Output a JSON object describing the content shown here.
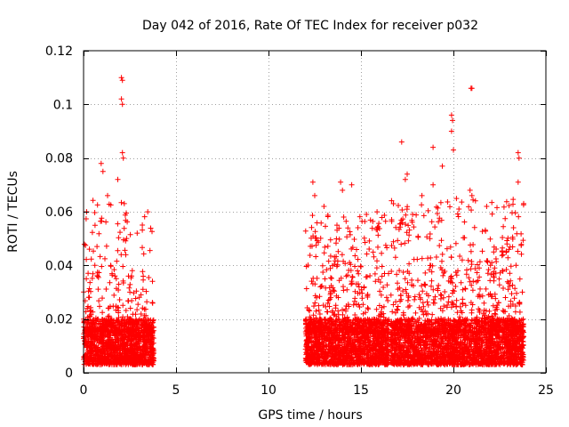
{
  "chart_data": {
    "type": "scatter",
    "title": "Day 042 of 2016, Rate Of TEC Index for receiver p032",
    "xlabel": "GPS time / hours",
    "ylabel": "ROTI / TECUs",
    "xlim": [
      0,
      25
    ],
    "ylim": [
      0,
      0.12
    ],
    "xticks": [
      0,
      5,
      10,
      15,
      20,
      25
    ],
    "yticks": [
      0,
      0.02,
      0.04,
      0.06,
      0.08,
      0.1,
      0.12
    ],
    "xtick_labels": [
      "0",
      "5",
      "10",
      "15",
      "20",
      "25"
    ],
    "ytick_labels": [
      "0",
      "0.02",
      "0.04",
      "0.06",
      "0.08",
      "0.1",
      "0.12"
    ],
    "grid": true,
    "marker": "+",
    "color": "#ff0000",
    "series": [
      {
        "name": "ROTI",
        "density_segments": [
          {
            "x_range": [
              0.0,
              3.8
            ],
            "y_base": [
              0.003,
              0.02
            ],
            "n_base": 1300,
            "n_spread": 260,
            "y_spread_max": 0.065
          },
          {
            "x_range": [
              12.0,
              16.5
            ],
            "y_base": [
              0.003,
              0.02
            ],
            "n_base": 1500,
            "n_spread": 380,
            "y_spread_max": 0.06
          },
          {
            "x_range": [
              16.6,
              23.8
            ],
            "y_base": [
              0.003,
              0.02
            ],
            "n_base": 2200,
            "n_spread": 600,
            "y_spread_max": 0.065
          }
        ],
        "peaks": [
          {
            "x": 0.95,
            "y": 0.078
          },
          {
            "x": 1.05,
            "y": 0.075
          },
          {
            "x": 1.3,
            "y": 0.066
          },
          {
            "x": 1.85,
            "y": 0.072
          },
          {
            "x": 2.05,
            "y": 0.11
          },
          {
            "x": 2.1,
            "y": 0.109
          },
          {
            "x": 2.05,
            "y": 0.102
          },
          {
            "x": 2.1,
            "y": 0.1
          },
          {
            "x": 2.1,
            "y": 0.082
          },
          {
            "x": 2.15,
            "y": 0.08
          },
          {
            "x": 2.2,
            "y": 0.063
          },
          {
            "x": 2.9,
            "y": 0.052
          },
          {
            "x": 0.15,
            "y": 0.035
          },
          {
            "x": 0.2,
            "y": 0.024
          },
          {
            "x": 12.4,
            "y": 0.071
          },
          {
            "x": 12.5,
            "y": 0.066
          },
          {
            "x": 13.0,
            "y": 0.062
          },
          {
            "x": 13.9,
            "y": 0.071
          },
          {
            "x": 14.0,
            "y": 0.068
          },
          {
            "x": 14.5,
            "y": 0.07
          },
          {
            "x": 13.7,
            "y": 0.055
          },
          {
            "x": 15.3,
            "y": 0.059
          },
          {
            "x": 17.2,
            "y": 0.086
          },
          {
            "x": 17.5,
            "y": 0.074
          },
          {
            "x": 17.4,
            "y": 0.072
          },
          {
            "x": 18.3,
            "y": 0.066
          },
          {
            "x": 18.9,
            "y": 0.084
          },
          {
            "x": 18.9,
            "y": 0.07
          },
          {
            "x": 19.4,
            "y": 0.077
          },
          {
            "x": 19.9,
            "y": 0.096
          },
          {
            "x": 19.95,
            "y": 0.094
          },
          {
            "x": 19.9,
            "y": 0.09
          },
          {
            "x": 20.0,
            "y": 0.083
          },
          {
            "x": 20.3,
            "y": 0.061
          },
          {
            "x": 20.95,
            "y": 0.106
          },
          {
            "x": 21.0,
            "y": 0.106
          },
          {
            "x": 20.9,
            "y": 0.068
          },
          {
            "x": 21.0,
            "y": 0.066
          },
          {
            "x": 21.8,
            "y": 0.062
          },
          {
            "x": 22.9,
            "y": 0.048
          },
          {
            "x": 23.5,
            "y": 0.082
          },
          {
            "x": 23.55,
            "y": 0.08
          },
          {
            "x": 23.5,
            "y": 0.071
          },
          {
            "x": 23.8,
            "y": 0.063
          }
        ]
      }
    ]
  }
}
